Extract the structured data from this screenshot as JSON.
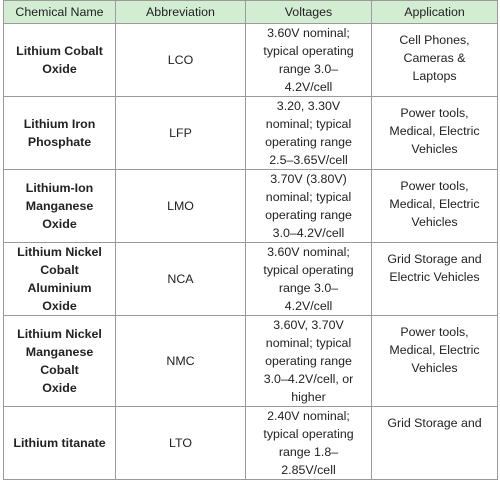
{
  "headers": [
    "Chemical Name",
    "Abbreviation",
    "Voltages",
    "Application"
  ],
  "rows": [
    {
      "name": "Lithium Cobalt\nOxide",
      "abbr": "LCO",
      "voltage": "3.60V nominal;\ntypical operating\nrange 3.0–\n4.2V/cell",
      "application": "Cell Phones,\nCameras &\nLaptops"
    },
    {
      "name": "Lithium Iron\nPhosphate",
      "abbr": "LFP",
      "voltage": "3.20, 3.30V\nnominal; typical\noperating range\n2.5–3.65V/cell",
      "application": "Power tools,\nMedical, Electric\nVehicles"
    },
    {
      "name": "Lithium-Ion\nManganese Oxide",
      "abbr": "LMO",
      "voltage": "3.70V (3.80V)\nnominal; typical\noperating range\n3.0–4.2V/cell",
      "application": "Power tools,\nMedical, Electric\nVehicles"
    },
    {
      "name": "Lithium Nickel\nCobalt Aluminium\nOxide",
      "abbr": "NCA",
      "voltage": "3.60V nominal;\ntypical operating\nrange 3.0–\n4.2V/cell",
      "application": "Grid Storage and\nElectric Vehicles"
    },
    {
      "name": "Lithium Nickel\nManganese Cobalt\nOxide",
      "abbr": "NMC",
      "voltage": "3.60V, 3.70V\nnominal; typical\noperating range\n3.0–4.2V/cell, or\nhigher",
      "application": "Power tools,\nMedical, Electric\nVehicles"
    },
    {
      "name": "Lithium titanate",
      "abbr": "LTO",
      "voltage": "2.40V nominal;\ntypical operating\nrange 1.8–\n2.85V/cell",
      "application": "Grid Storage and"
    }
  ]
}
